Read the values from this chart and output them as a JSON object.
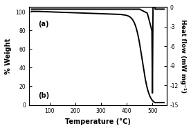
{
  "left_ylabel": "% Weight",
  "right_ylabel": "Heat flow (mW mg⁻¹)",
  "xlabel": "Temperature (°C)",
  "label_a": "(a)",
  "label_b": "(b)",
  "left_ylim": [
    0,
    105
  ],
  "right_ylim": [
    -15,
    0
  ],
  "right_yticks": [
    -15,
    -12,
    -9,
    -6,
    -3,
    0
  ],
  "right_yticklabels": [
    "-15",
    "-12",
    "-9",
    "-6",
    "-3",
    "0"
  ],
  "xlim": [
    20,
    555
  ],
  "xticks": [
    100,
    200,
    300,
    400,
    500
  ],
  "left_yticks": [
    0,
    20,
    40,
    60,
    80,
    100
  ],
  "left_yticklabels": [
    "0",
    "20",
    "40",
    "60",
    "80",
    "100"
  ],
  "bg_color": "white",
  "line_color": "black",
  "linewidth": 1.4
}
